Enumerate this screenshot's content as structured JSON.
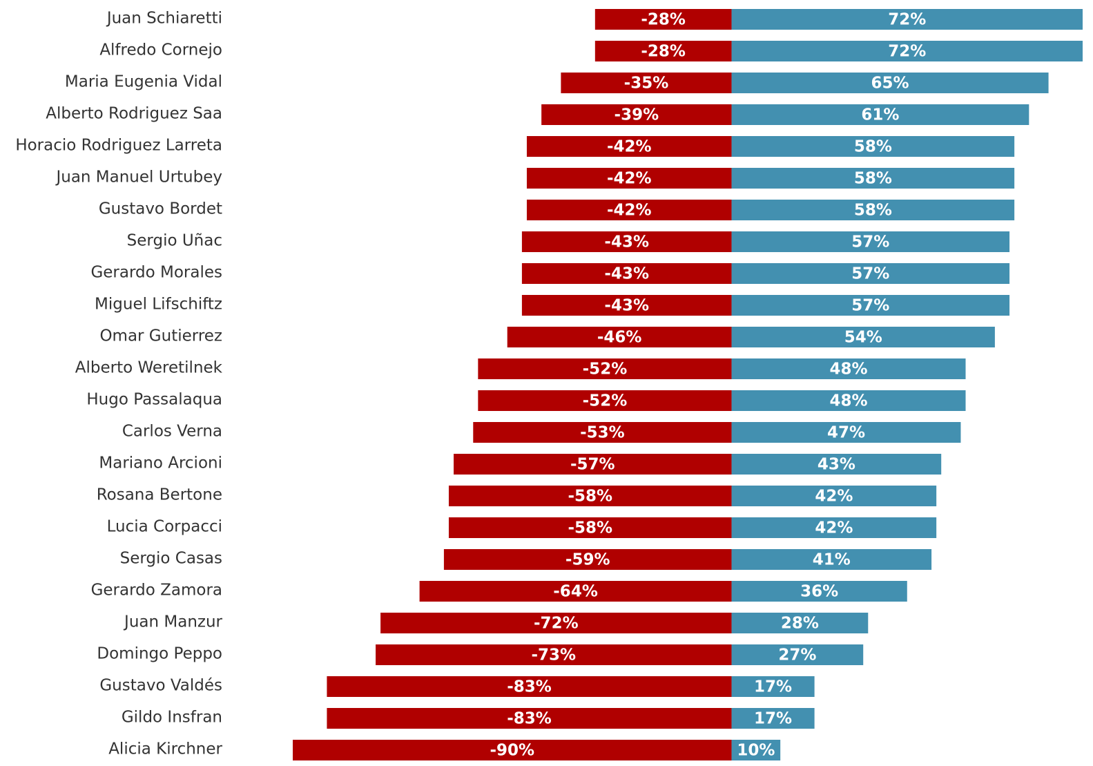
{
  "chart_data": {
    "type": "diverging-bar",
    "categories": [
      "Juan Schiaretti",
      "Alfredo Cornejo",
      "Maria Eugenia Vidal",
      "Alberto Rodriguez Saa",
      "Horacio Rodriguez Larreta",
      "Juan Manuel Urtubey",
      "Gustavo Bordet",
      "Sergio Uñac",
      "Gerardo Morales",
      "Miguel Lifschiftz",
      "Omar Gutierrez",
      "Alberto Weretilnek",
      "Hugo Passalaqua",
      "Carlos Verna",
      "Mariano Arcioni",
      "Rosana Bertone",
      "Lucia Corpacci",
      "Sergio Casas",
      "Gerardo Zamora",
      "Juan Manzur",
      "Domingo Peppo",
      "Gustavo Valdés",
      "Gildo Insfran",
      "Alicia Kirchner"
    ],
    "series": [
      {
        "color": "#b00000",
        "values": [
          -28,
          -28,
          -35,
          -39,
          -42,
          -42,
          -42,
          -43,
          -43,
          -43,
          -46,
          -52,
          -52,
          -53,
          -57,
          -58,
          -58,
          -59,
          -64,
          -72,
          -73,
          -83,
          -83,
          -90
        ],
        "value_labels": [
          "-28%",
          "-28%",
          "-35%",
          "-39%",
          "-42%",
          "-42%",
          "-42%",
          "-43%",
          "-43%",
          "-43%",
          "-46%",
          "-52%",
          "-52%",
          "-53%",
          "-57%",
          "-58%",
          "-58%",
          "-59%",
          "-64%",
          "-72%",
          "-73%",
          "-83%",
          "-83%",
          "-90%"
        ]
      },
      {
        "color": "#4390b0",
        "values": [
          72,
          72,
          65,
          61,
          58,
          58,
          58,
          57,
          57,
          57,
          54,
          48,
          48,
          47,
          43,
          42,
          42,
          41,
          36,
          28,
          27,
          17,
          17,
          10
        ],
        "value_labels": [
          "72%",
          "72%",
          "65%",
          "61%",
          "58%",
          "58%",
          "58%",
          "57%",
          "57%",
          "57%",
          "54%",
          "48%",
          "48%",
          "47%",
          "43%",
          "42%",
          "42%",
          "41%",
          "36%",
          "28%",
          "27%",
          "17%",
          "17%",
          "10%"
        ]
      }
    ],
    "xlim": [
      -90,
      72
    ]
  }
}
